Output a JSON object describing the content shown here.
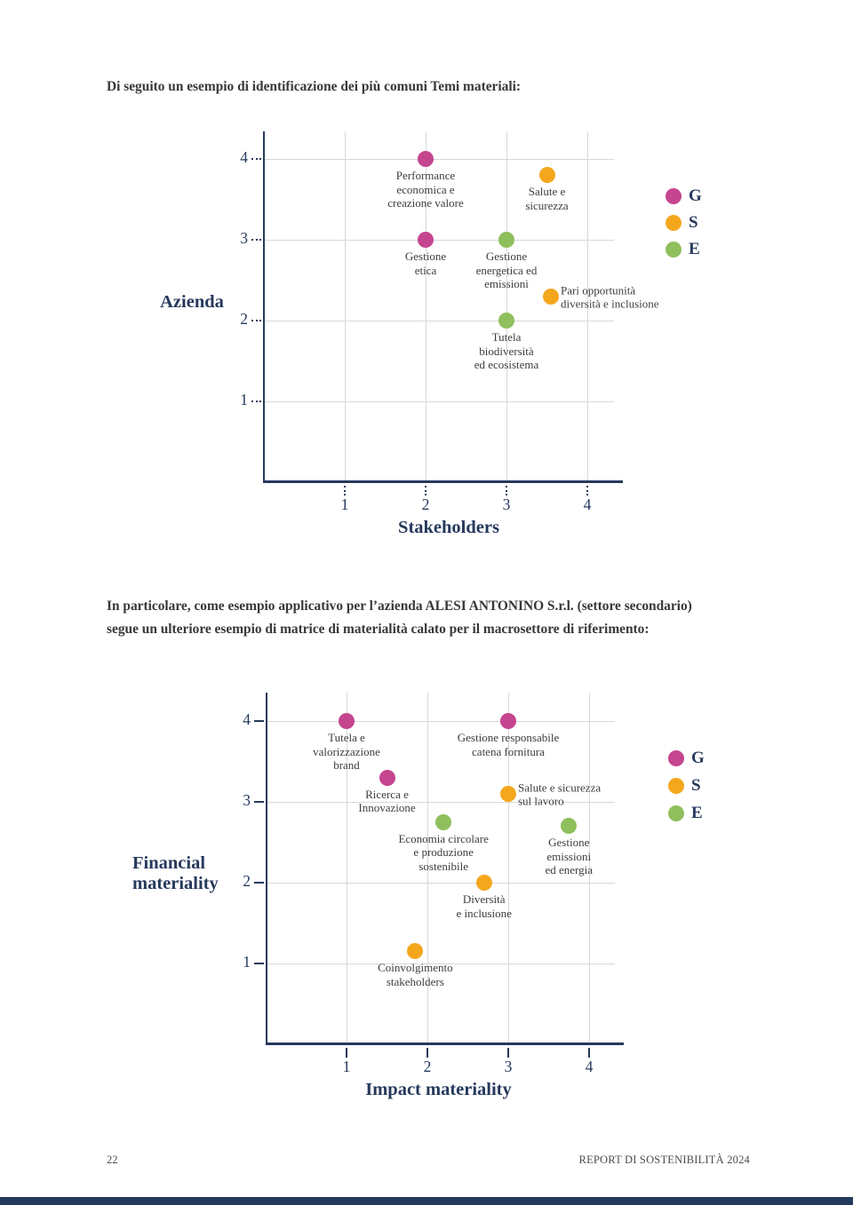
{
  "page": {
    "intro_text": "Di seguito un esempio di identificazione dei più comuni Temi materiali:",
    "middle_text": {
      "line1": "In particolare, come esempio applicativo per l’azienda ALESI ANTONINO S.r.l. (settore secondario)",
      "line2": "segue un ulteriore esempio di matrice di materialità calato per il macrosettore di riferimento:"
    },
    "footer": {
      "page_number": "22",
      "report_title": "REPORT DI SOSTENIBILITÀ 2024"
    }
  },
  "colors": {
    "series": {
      "G": "#c5458f",
      "S": "#f4a71d",
      "E": "#90bf5d"
    },
    "axis": "#26395c",
    "grid": "#d8d8d8",
    "point_label": "#3d3d3d",
    "bottom_bar": "#25395c"
  },
  "chart_data": [
    {
      "type": "scatter",
      "title": "",
      "xlabel": "Stakeholders",
      "ylabel": "Azienda",
      "xticks": [
        1,
        2,
        3,
        4
      ],
      "yticks": [
        1,
        2,
        3,
        4
      ],
      "xlim": [
        0,
        4.3
      ],
      "ylim": [
        0,
        4.3
      ],
      "grid": true,
      "legend_position": "right",
      "legend": [
        {
          "label": "G",
          "series": "G"
        },
        {
          "label": "S",
          "series": "S"
        },
        {
          "label": "E",
          "series": "E"
        }
      ],
      "points": [
        {
          "label": "Performance economica e creazione valore",
          "lines": [
            "Performance",
            "economica e",
            "creazione valore"
          ],
          "x": 2,
          "y": 4,
          "series": "G",
          "label_pos": "below"
        },
        {
          "label": "Salute e sicurezza",
          "lines": [
            "Salute e",
            "sicurezza"
          ],
          "x": 3.5,
          "y": 3.8,
          "series": "S",
          "label_pos": "below"
        },
        {
          "label": "Gestione etica",
          "lines": [
            "Gestione",
            "etica"
          ],
          "x": 2,
          "y": 3,
          "series": "G",
          "label_pos": "below"
        },
        {
          "label": "Gestione energetica ed emissioni",
          "lines": [
            "Gestione",
            "energetica ed",
            "emissioni"
          ],
          "x": 3,
          "y": 3,
          "series": "E",
          "label_pos": "below"
        },
        {
          "label": "Pari opportunità diversità e inclusione",
          "lines": [
            "Pari opportunità",
            "diversità e inclusione"
          ],
          "x": 3.55,
          "y": 2.3,
          "series": "S",
          "label_pos": "right"
        },
        {
          "label": "Tutela biodiversità ed ecosistema",
          "lines": [
            "Tutela",
            "biodiversità",
            "ed ecosistema"
          ],
          "x": 3,
          "y": 2,
          "series": "E",
          "label_pos": "below"
        }
      ]
    },
    {
      "type": "scatter",
      "title": "",
      "xlabel": "Impact materiality",
      "ylabel": "Financial materiality",
      "xticks": [
        1,
        2,
        3,
        4
      ],
      "yticks": [
        1,
        2,
        3,
        4
      ],
      "xlim": [
        0,
        4.3
      ],
      "ylim": [
        0,
        4.3
      ],
      "grid": true,
      "legend_position": "right",
      "legend": [
        {
          "label": "G",
          "series": "G"
        },
        {
          "label": "S",
          "series": "S"
        },
        {
          "label": "E",
          "series": "E"
        }
      ],
      "points": [
        {
          "label": "Tutela e valorizzazione brand",
          "lines": [
            "Tutela e",
            "valorizzazione",
            "brand"
          ],
          "x": 1,
          "y": 4,
          "series": "G",
          "label_pos": "below"
        },
        {
          "label": "Gestione responsabile catena fornitura",
          "lines": [
            "Gestione responsabile",
            "catena fornitura"
          ],
          "x": 3,
          "y": 4,
          "series": "G",
          "label_pos": "below"
        },
        {
          "label": "Ricerca e Innovazione",
          "lines": [
            "Ricerca e",
            "Innovazione"
          ],
          "x": 1.5,
          "y": 3.3,
          "series": "G",
          "label_pos": "below"
        },
        {
          "label": "Salute e sicurezza sul lavoro",
          "lines": [
            "Salute e sicurezza",
            "sul lavoro"
          ],
          "x": 3,
          "y": 3.1,
          "series": "S",
          "label_pos": "right"
        },
        {
          "label": "Economia circolare e produzione sostenibile",
          "lines": [
            "Economia circolare",
            "e produzione",
            "sostenibile"
          ],
          "x": 2.2,
          "y": 2.75,
          "series": "E",
          "label_pos": "below"
        },
        {
          "label": "Gestione emissioni ed energia",
          "lines": [
            "Gestione",
            "emissioni",
            "ed energia"
          ],
          "x": 3.75,
          "y": 2.7,
          "series": "E",
          "label_pos": "below"
        },
        {
          "label": "Diversità e inclusione",
          "lines": [
            "Diversità",
            "e inclusione"
          ],
          "x": 2.7,
          "y": 2,
          "series": "S",
          "label_pos": "below"
        },
        {
          "label": "Coinvolgimento stakeholders",
          "lines": [
            "Coinvolgimento",
            "stakeholders"
          ],
          "x": 1.85,
          "y": 1.15,
          "series": "S",
          "label_pos": "below"
        }
      ]
    }
  ]
}
